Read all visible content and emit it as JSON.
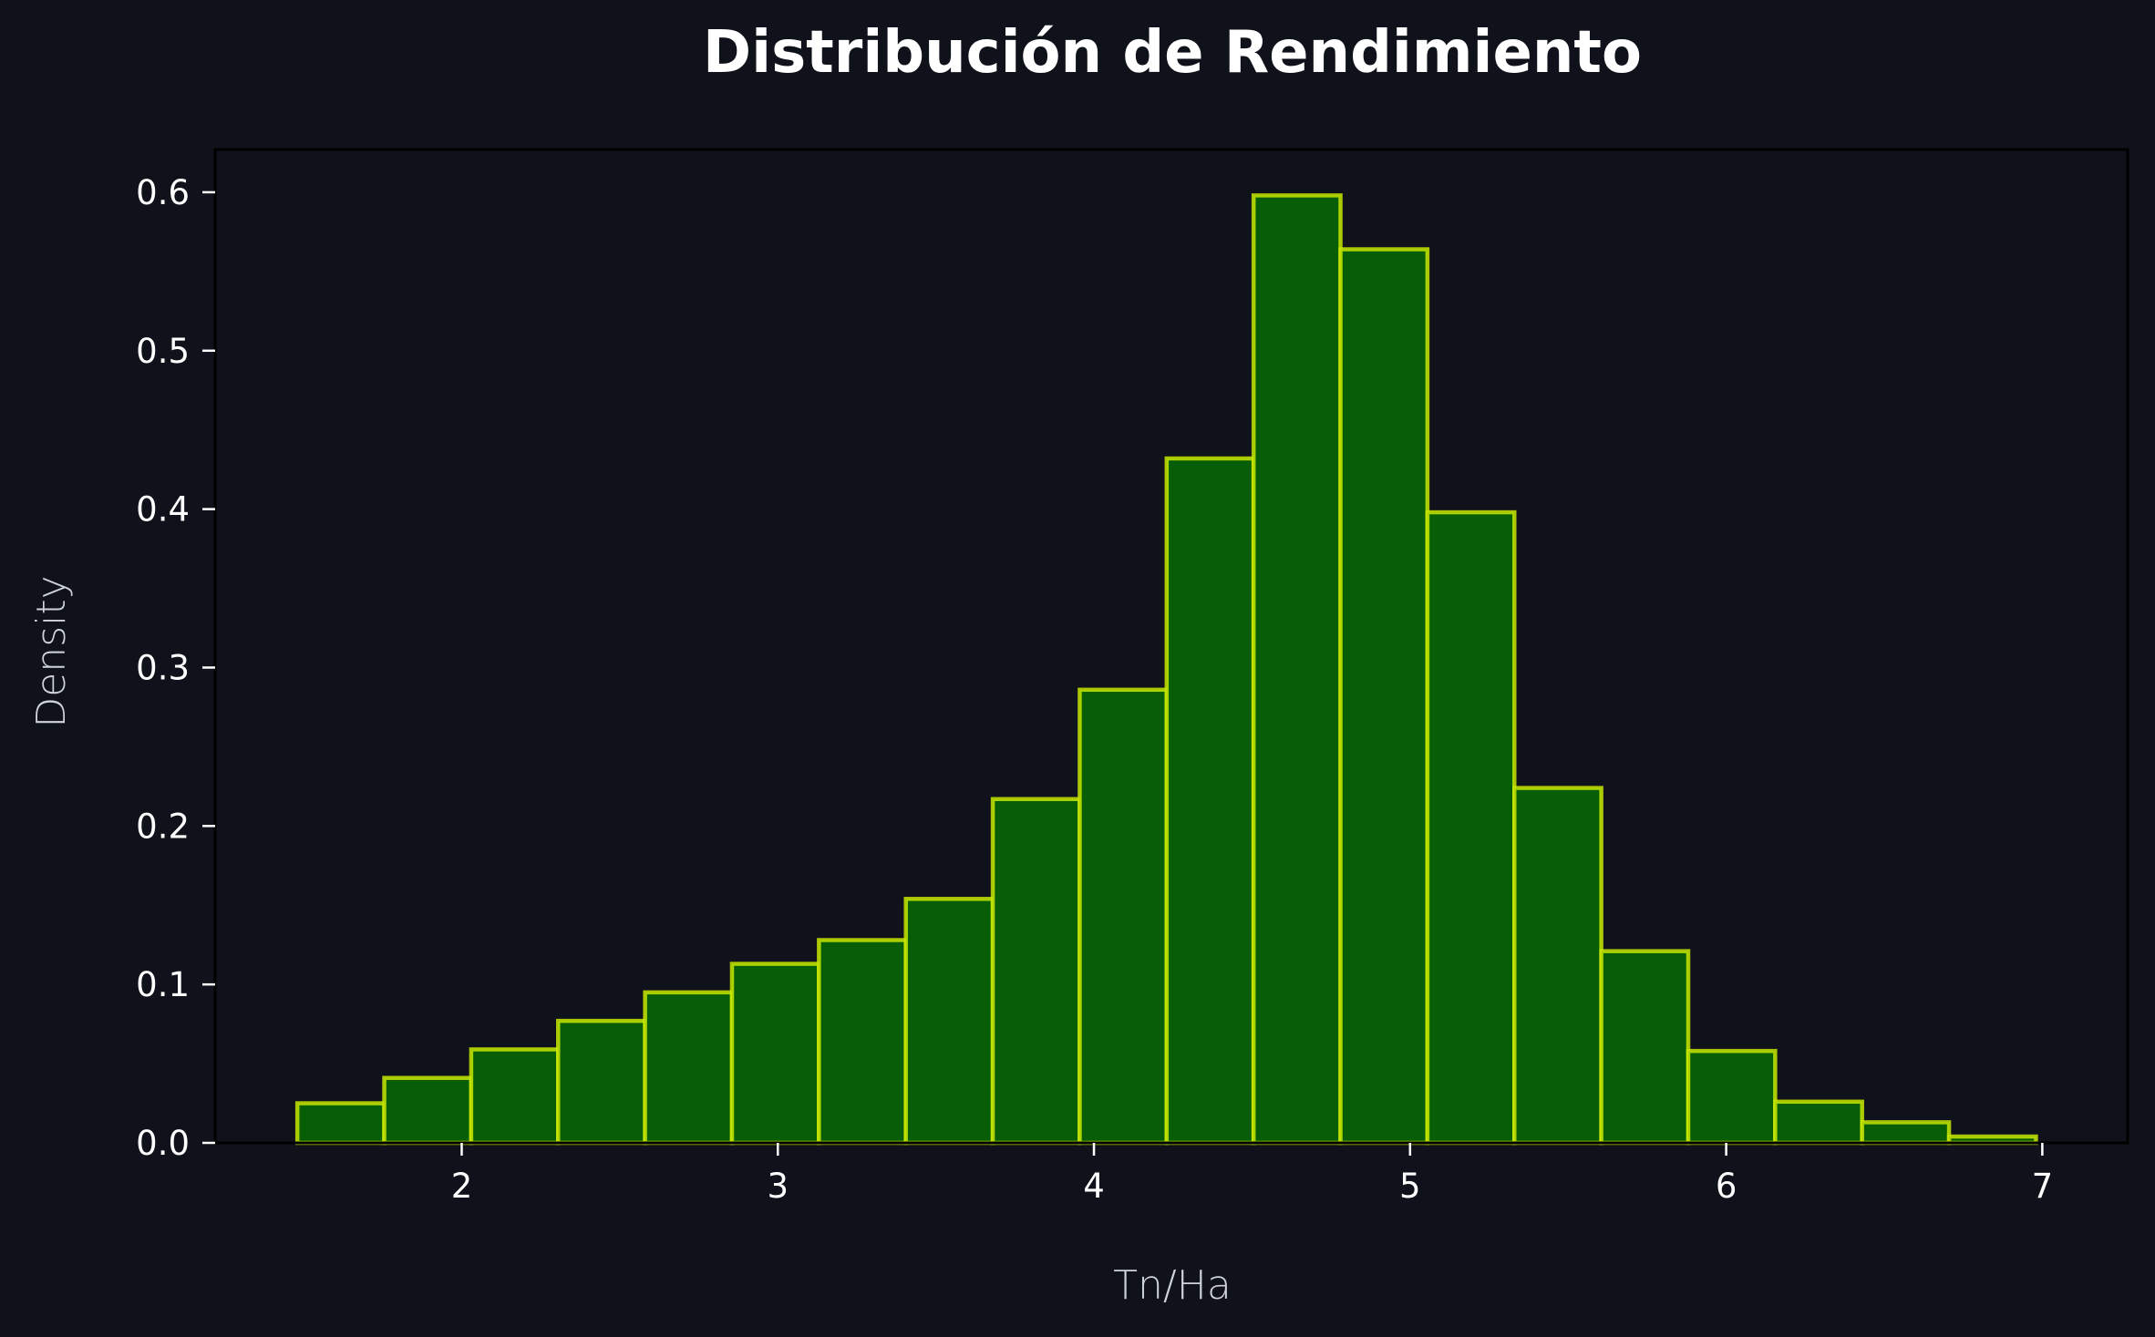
{
  "chart_data": {
    "type": "bar",
    "title": "Distribución de Rendimiento",
    "xlabel": "Tn/Ha",
    "ylabel": "Density",
    "xlim": [
      1.22,
      7.27
    ],
    "ylim": [
      0,
      0.627
    ],
    "xticks": [
      2,
      3,
      4,
      5,
      6,
      7
    ],
    "yticks": [
      "0.0",
      "0.1",
      "0.2",
      "0.3",
      "0.4",
      "0.5",
      "0.6"
    ],
    "grid": false,
    "bins": [
      {
        "x0": 1.48,
        "x1": 1.755,
        "value": 0.025
      },
      {
        "x0": 1.755,
        "x1": 2.03,
        "value": 0.041
      },
      {
        "x0": 2.03,
        "x1": 2.305,
        "value": 0.059
      },
      {
        "x0": 2.305,
        "x1": 2.58,
        "value": 0.077
      },
      {
        "x0": 2.58,
        "x1": 2.855,
        "value": 0.095
      },
      {
        "x0": 2.855,
        "x1": 3.13,
        "value": 0.113
      },
      {
        "x0": 3.13,
        "x1": 3.405,
        "value": 0.128
      },
      {
        "x0": 3.405,
        "x1": 3.68,
        "value": 0.154
      },
      {
        "x0": 3.68,
        "x1": 3.955,
        "value": 0.217
      },
      {
        "x0": 3.955,
        "x1": 4.23,
        "value": 0.286
      },
      {
        "x0": 4.23,
        "x1": 4.505,
        "value": 0.432
      },
      {
        "x0": 4.505,
        "x1": 4.78,
        "value": 0.598
      },
      {
        "x0": 4.78,
        "x1": 5.055,
        "value": 0.564
      },
      {
        "x0": 5.055,
        "x1": 5.33,
        "value": 0.398
      },
      {
        "x0": 5.33,
        "x1": 5.605,
        "value": 0.224
      },
      {
        "x0": 5.605,
        "x1": 5.88,
        "value": 0.121
      },
      {
        "x0": 5.88,
        "x1": 6.155,
        "value": 0.058
      },
      {
        "x0": 6.155,
        "x1": 6.43,
        "value": 0.026
      },
      {
        "x0": 6.43,
        "x1": 6.705,
        "value": 0.013
      },
      {
        "x0": 6.705,
        "x1": 6.98,
        "value": 0.004
      }
    ],
    "colors": {
      "background": "#0f121a",
      "bar_fill": "#075e07",
      "bar_edge": "#c8e600",
      "axes": "#000000",
      "text": "#ffffff"
    }
  }
}
